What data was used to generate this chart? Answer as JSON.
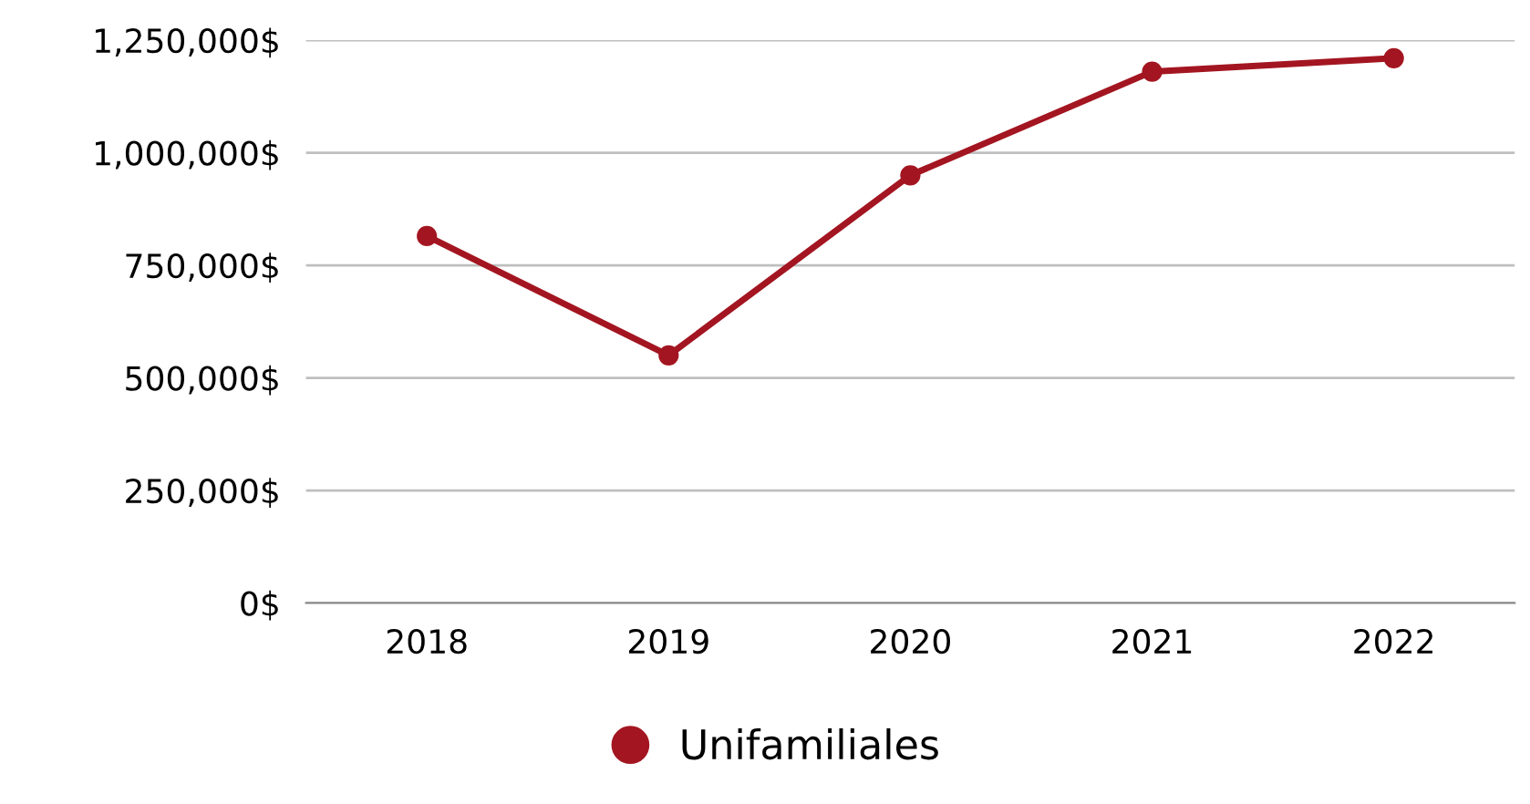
{
  "chart_data": {
    "type": "line",
    "categories": [
      "2018",
      "2019",
      "2020",
      "2021",
      "2022"
    ],
    "series": [
      {
        "name": "Unifamiliales",
        "color": "#a31621",
        "values": [
          815000,
          550000,
          950000,
          1180000,
          1210000
        ]
      }
    ],
    "ylim": [
      0,
      1250000
    ],
    "yticks": [
      {
        "value": 0,
        "label": "0$"
      },
      {
        "value": 250000,
        "label": "250,000$"
      },
      {
        "value": 500000,
        "label": "500,000$"
      },
      {
        "value": 750000,
        "label": "750,000$"
      },
      {
        "value": 1000000,
        "label": "1,000,000$"
      },
      {
        "value": 1250000,
        "label": "1,250,000$"
      }
    ],
    "grid": "y",
    "legend": "bottom",
    "marker": "circle",
    "line_style": "solid"
  }
}
